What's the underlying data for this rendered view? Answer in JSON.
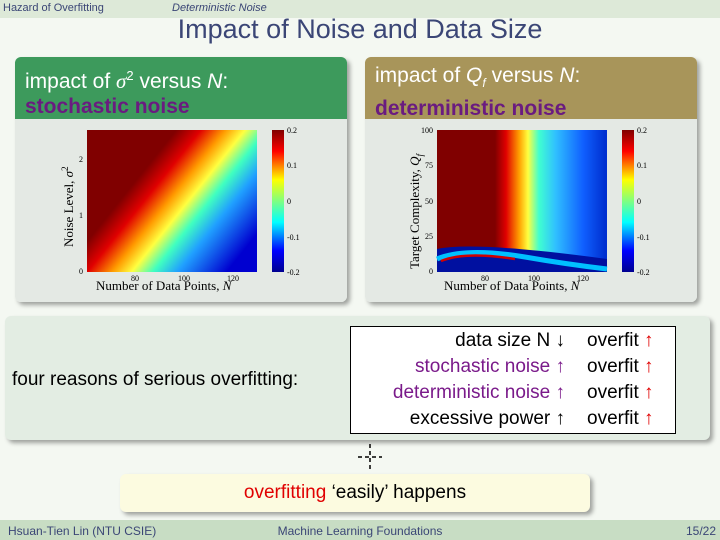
{
  "header": {
    "section": "Hazard of Overfitting",
    "subsection": "Deterministic Noise"
  },
  "title": "Impact of Noise and Data Size",
  "panels": [
    {
      "heading": [
        "impact of ",
        "σ",
        "2",
        " versus ",
        "N",
        ":"
      ],
      "emphasis": "stochastic noise",
      "plot": {
        "y_label": [
          "Noise Level, ",
          "σ",
          "2"
        ],
        "x_label": [
          "Number of Data Points, ",
          "N"
        ],
        "yticks": [
          "0",
          "1",
          "2"
        ],
        "xticks": [
          "80",
          "100",
          "120"
        ],
        "cbar_ticks": [
          "0.2",
          "0.1",
          "0",
          "-0.1",
          "-0.2"
        ]
      }
    },
    {
      "heading": [
        "impact of ",
        "Q",
        "f",
        " versus ",
        "N",
        ":"
      ],
      "emphasis": "deterministic noise",
      "plot": {
        "y_label": [
          "Target Complexity, ",
          "Q",
          "f"
        ],
        "x_label": [
          "Number of Data Points, ",
          "N"
        ],
        "yticks": [
          "0",
          "25",
          "50",
          "75",
          "100"
        ],
        "xticks": [
          "80",
          "100",
          "120"
        ],
        "cbar_ticks": [
          "0.2",
          "0.1",
          "0",
          "-0.1",
          "-0.2"
        ]
      }
    }
  ],
  "reasons": {
    "label": "four reasons of serious overfitting:",
    "rows": [
      {
        "item": "data size N ↓",
        "result": "overfit ",
        "arrow": "↑"
      },
      {
        "item": "stochastic noise ↑",
        "result": "overfit ",
        "arrow": "↑"
      },
      {
        "item": "deterministic noise ↑",
        "result": "overfit ",
        "arrow": "↑"
      },
      {
        "item": "excessive power ↑",
        "result": "overfit ",
        "arrow": "↑"
      }
    ]
  },
  "conclusion": {
    "highlight": "overfitting",
    "rest": " ‘easily’ happens"
  },
  "footer": {
    "author": "Hsuan-Tien Lin (NTU CSIE)",
    "course": "Machine Learning Foundations",
    "page": "15/22"
  }
}
